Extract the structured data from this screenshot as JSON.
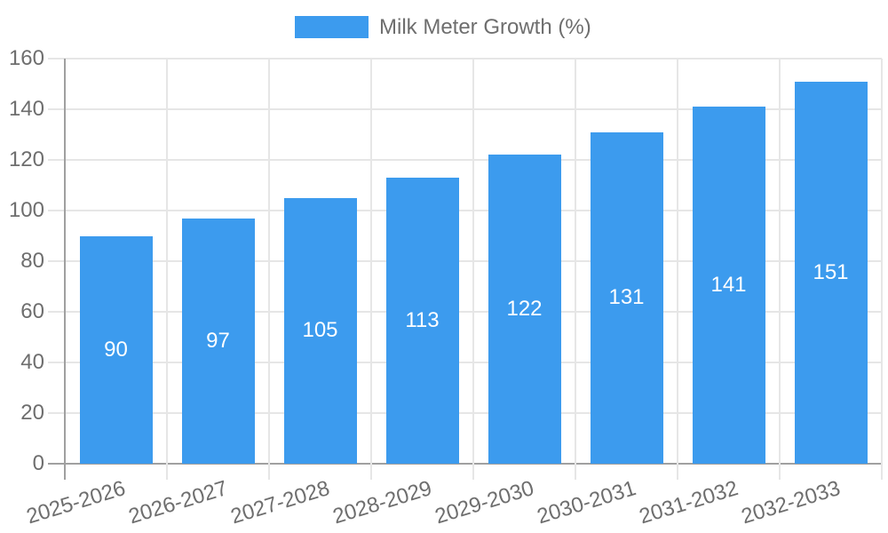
{
  "legend": {
    "label": "Milk Meter Growth (%)"
  },
  "chart_data": {
    "type": "bar",
    "title": "",
    "legend_position": "top",
    "grid": true,
    "categories": [
      "2025-2026",
      "2026-2027",
      "2027-2028",
      "2028-2029",
      "2029-2030",
      "2030-2031",
      "2031-2032",
      "2032-2033"
    ],
    "series": [
      {
        "name": "Milk Meter Growth (%)",
        "values": [
          90,
          97,
          105,
          113,
          122,
          131,
          141,
          151
        ]
      }
    ],
    "value_labels": [
      "90",
      "97",
      "105",
      "113",
      "122",
      "131",
      "141",
      "151"
    ],
    "xlabel": "",
    "ylabel": "",
    "y_ticks": [
      0,
      20,
      40,
      60,
      80,
      100,
      120,
      140,
      160
    ],
    "ylim": [
      0,
      160
    ],
    "colors": {
      "bar": "#3c9bee",
      "bar_label": "#ffffff",
      "axis_text": "#6e6e6e",
      "grid_line": "#e6e6e6",
      "axis_line": "#a0a0a0"
    }
  }
}
